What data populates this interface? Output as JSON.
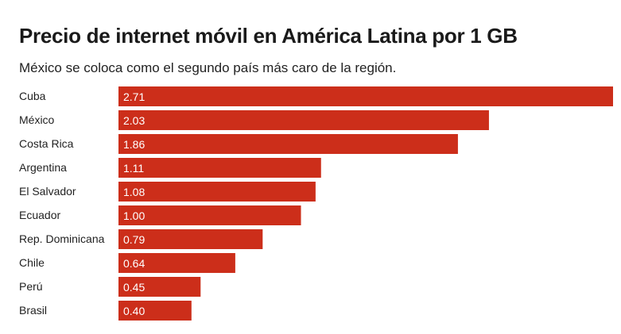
{
  "chart_data": {
    "type": "bar",
    "orientation": "horizontal",
    "title": "Precio de internet móvil en América Latina por 1 GB",
    "subtitle": "México se coloca como el segundo país más caro de la región.",
    "categories": [
      "Cuba",
      "México",
      "Costa Rica",
      "Argentina",
      "El Salvador",
      "Ecuador",
      "Rep. Dominicana",
      "Chile",
      "Perú",
      "Brasil"
    ],
    "values": [
      2.71,
      2.03,
      1.86,
      1.11,
      1.08,
      1.0,
      0.79,
      0.64,
      0.45,
      0.4
    ],
    "value_labels": [
      "2.71",
      "2.03",
      "1.86",
      "1.11",
      "1.08",
      "1.00",
      "0.79",
      "0.64",
      "0.45",
      "0.40"
    ],
    "xlim": [
      0,
      2.71
    ],
    "bar_color": "#cc2e1a"
  }
}
